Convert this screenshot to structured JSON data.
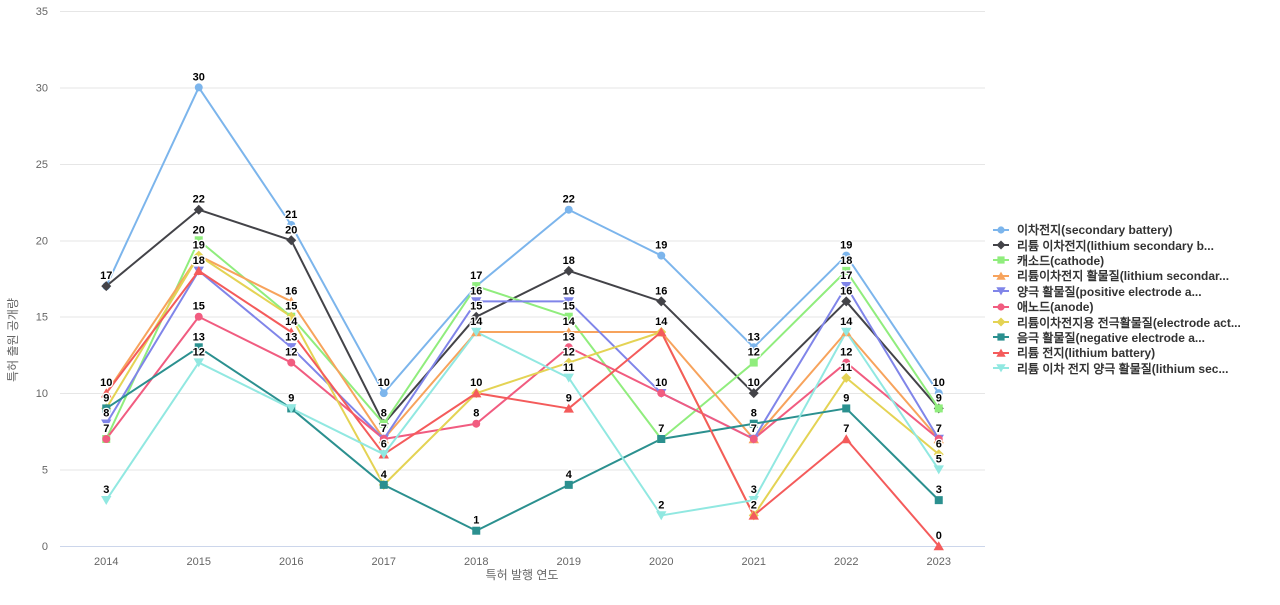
{
  "chart_data": {
    "type": "line",
    "title": "",
    "xlabel": "특허 발행 연도",
    "ylabel": "특허 출원 공개량",
    "x_categories": [
      "2014",
      "2015",
      "2016",
      "2017",
      "2018",
      "2019",
      "2020",
      "2021",
      "2022",
      "2023"
    ],
    "ylim": [
      0,
      35
    ],
    "yticks": [
      0,
      5,
      10,
      15,
      20,
      25,
      30,
      35
    ],
    "grid": "horizontal",
    "legend_position": "right",
    "data_labels": true,
    "axis_text_color": "#666666",
    "gridline_color": "#e6e6e6",
    "xaxis_line_color": "#ccd6eb",
    "legend_text_color": "#333333",
    "series": [
      {
        "name": "이차전지(secondary battery)",
        "legend_label": "이차전지(secondary battery)",
        "color": "#7cb5ec",
        "marker": "circle",
        "values": [
          17,
          30,
          21,
          10,
          17,
          22,
          19,
          13,
          19,
          10
        ]
      },
      {
        "name": "리튬 이차전지(lithium secondary battery)",
        "legend_label": "리튬 이차전지(lithium secondary b...",
        "color": "#434348",
        "marker": "diamond",
        "values": [
          17,
          22,
          20,
          8,
          15,
          18,
          16,
          10,
          16,
          9
        ]
      },
      {
        "name": "캐소드(cathode)",
        "legend_label": "캐소드(cathode)",
        "color": "#90ed7d",
        "marker": "square",
        "values": [
          7,
          20,
          15,
          8,
          17,
          15,
          7,
          12,
          18,
          9
        ]
      },
      {
        "name": "리튬이차전지 활물질(lithium secondary battery active material)",
        "legend_label": "리튬이차전지 활물질(lithium secondar...",
        "color": "#f7a35c",
        "marker": "triangle",
        "values": [
          10,
          19,
          16,
          7,
          14,
          14,
          14,
          7,
          14,
          7
        ]
      },
      {
        "name": "양극 활물질(positive electrode active material)",
        "legend_label": "양극 활물질(positive electrode a...",
        "color": "#8085e9",
        "marker": "triangle-down",
        "values": [
          8,
          18,
          13,
          7,
          16,
          16,
          10,
          7,
          17,
          7
        ]
      },
      {
        "name": "애노드(anode)",
        "legend_label": "애노드(anode)",
        "color": "#f15c80",
        "marker": "circle",
        "values": [
          7,
          15,
          12,
          7,
          8,
          13,
          10,
          7,
          12,
          7
        ]
      },
      {
        "name": "리튬이차전지용 전극활물질(electrode active material)",
        "legend_label": "리튬이차전지용 전극활물질(electrode act...",
        "color": "#e4d354",
        "marker": "diamond",
        "values": [
          9,
          19,
          15,
          4,
          10,
          12,
          14,
          2,
          11,
          6
        ]
      },
      {
        "name": "음극 활물질(negative electrode active material)",
        "legend_label": "음극 활물질(negative electrode a...",
        "color": "#2b908f",
        "marker": "square",
        "values": [
          9,
          13,
          9,
          4,
          1,
          4,
          7,
          8,
          9,
          3
        ]
      },
      {
        "name": "리튬 전지(lithium battery)",
        "legend_label": "리튬 전지(lithium battery)",
        "color": "#f45b5b",
        "marker": "triangle",
        "values": [
          10,
          18,
          14,
          6,
          10,
          9,
          14,
          2,
          7,
          0
        ]
      },
      {
        "name": "리튬 이차 전지 양극 활물질(lithium secondary battery positive electrode active material)",
        "legend_label": "리튬 이차 전지 양극 활물질(lithium sec...",
        "color": "#91e8e1",
        "marker": "triangle-down",
        "values": [
          3,
          12,
          9,
          6,
          14,
          11,
          2,
          3,
          14,
          5
        ]
      }
    ]
  }
}
